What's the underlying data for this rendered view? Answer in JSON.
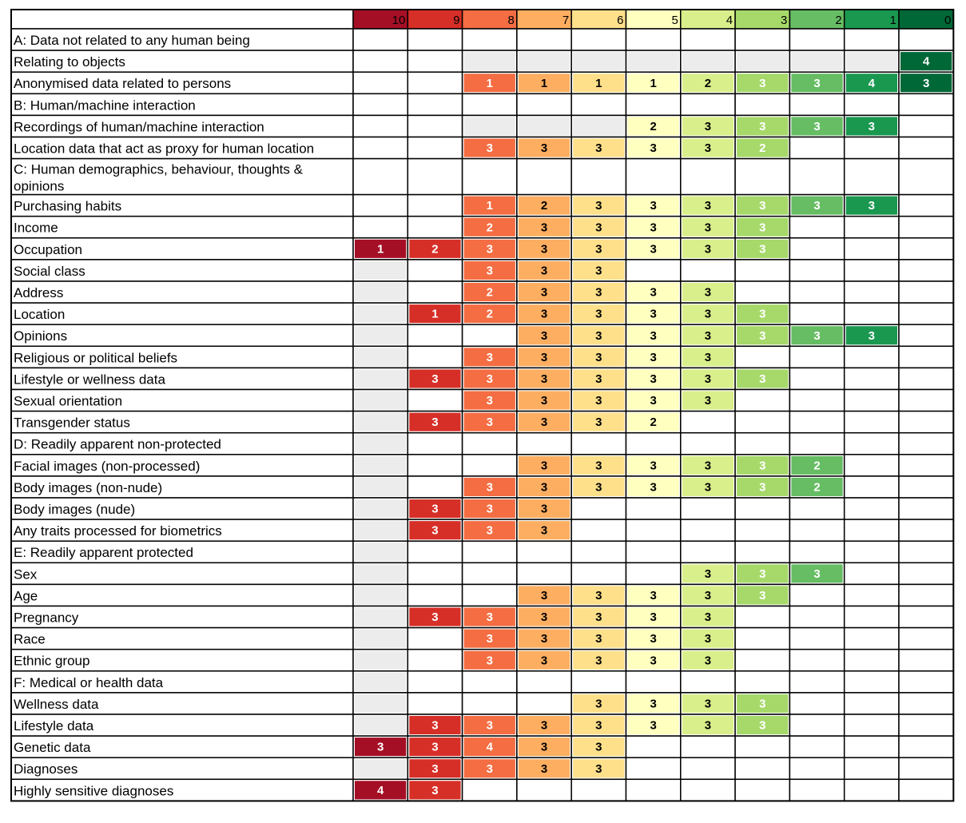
{
  "chart_data": {
    "type": "heatmap",
    "title": "",
    "columns": [
      "10",
      "9",
      "8",
      "7",
      "6",
      "5",
      "4",
      "3",
      "2",
      "1",
      "0"
    ],
    "column_colors": [
      "#a50f25",
      "#d62f27",
      "#f46d43",
      "#fdae61",
      "#fee08b",
      "#ffffbf",
      "#d9ef8b",
      "#a6d96a",
      "#66bd63",
      "#1a9850",
      "#006837"
    ],
    "grey_color": "#ececec",
    "rows": [
      {
        "label": "A: Data not related to any human being",
        "header": true,
        "cells": [
          "",
          "",
          "",
          "",
          "",
          "",
          "",
          "",
          "",
          "",
          ""
        ]
      },
      {
        "label": "Relating to objects",
        "cells": [
          "",
          "",
          "g",
          "g",
          "g",
          "g",
          "g",
          "g",
          "g",
          "g",
          "4"
        ]
      },
      {
        "label": "Anonymised data related to persons",
        "cells": [
          "",
          "",
          "1",
          "1",
          "1",
          "1",
          "2",
          "3",
          "3",
          "4",
          "3"
        ]
      },
      {
        "label": "B: Human/machine interaction",
        "header": true,
        "cells": [
          "",
          "",
          "",
          "",
          "",
          "",
          "",
          "",
          "",
          "",
          ""
        ]
      },
      {
        "label": "Recordings of human/machine interaction",
        "cells": [
          "",
          "",
          "g",
          "g",
          "g",
          "2",
          "3",
          "3",
          "3",
          "3",
          ""
        ]
      },
      {
        "label": "Location data that act as proxy for human location",
        "cells": [
          "",
          "",
          "3",
          "3",
          "3",
          "3",
          "3",
          "2",
          "",
          "",
          ""
        ]
      },
      {
        "label": "C: Human demographics, behaviour, thoughts & opinions",
        "header": true,
        "tall": true,
        "cells": [
          "",
          "",
          "",
          "",
          "",
          "",
          "",
          "",
          "",
          "",
          ""
        ]
      },
      {
        "label": "Purchasing habits",
        "cells": [
          "",
          "",
          "1",
          "2",
          "3",
          "3",
          "3",
          "3",
          "3",
          "3",
          ""
        ]
      },
      {
        "label": "Income",
        "cells": [
          "",
          "",
          "2",
          "3",
          "3",
          "3",
          "3",
          "3",
          "",
          "",
          ""
        ]
      },
      {
        "label": "Occupation",
        "cells": [
          "1",
          "2",
          "3",
          "3",
          "3",
          "3",
          "3",
          "3",
          "",
          "",
          ""
        ]
      },
      {
        "label": "Social class",
        "cells": [
          "g",
          "",
          "3",
          "3",
          "3",
          "",
          "",
          "",
          "",
          "",
          ""
        ]
      },
      {
        "label": "Address",
        "cells": [
          "g",
          "",
          "2",
          "3",
          "3",
          "3",
          "3",
          "",
          "",
          "",
          ""
        ]
      },
      {
        "label": "Location",
        "cells": [
          "g",
          "1",
          "2",
          "3",
          "3",
          "3",
          "3",
          "3",
          "",
          "",
          ""
        ]
      },
      {
        "label": "Opinions",
        "cells": [
          "g",
          "",
          "",
          "3",
          "3",
          "3",
          "3",
          "3",
          "3",
          "3",
          ""
        ]
      },
      {
        "label": "Religious or political beliefs",
        "cells": [
          "g",
          "",
          "3",
          "3",
          "3",
          "3",
          "3",
          "",
          "",
          "",
          ""
        ]
      },
      {
        "label": "Lifestyle or wellness data",
        "cells": [
          "g",
          "3",
          "3",
          "3",
          "3",
          "3",
          "3",
          "3",
          "",
          "",
          ""
        ]
      },
      {
        "label": "Sexual orientation",
        "cells": [
          "g",
          "",
          "3",
          "3",
          "3",
          "3",
          "3",
          "",
          "",
          "",
          ""
        ]
      },
      {
        "label": "Transgender status",
        "cells": [
          "g",
          "3",
          "3",
          "3",
          "3",
          "2",
          "",
          "",
          "",
          "",
          ""
        ]
      },
      {
        "label": "D: Readily apparent non-protected",
        "header": true,
        "cells": [
          "g",
          "",
          "",
          "",
          "",
          "",
          "",
          "",
          "",
          "",
          ""
        ]
      },
      {
        "label": "Facial images (non-processed)",
        "cells": [
          "g",
          "",
          "",
          "3",
          "3",
          "3",
          "3",
          "3",
          "2",
          "",
          ""
        ]
      },
      {
        "label": "Body images (non-nude)",
        "cells": [
          "g",
          "",
          "3",
          "3",
          "3",
          "3",
          "3",
          "3",
          "2",
          "",
          ""
        ]
      },
      {
        "label": "Body images (nude)",
        "cells": [
          "g",
          "3",
          "3",
          "3",
          "",
          "",
          "",
          "",
          "",
          "",
          ""
        ]
      },
      {
        "label": "Any traits processed for biometrics",
        "cells": [
          "g",
          "3",
          "3",
          "3",
          "",
          "",
          "",
          "",
          "",
          "",
          ""
        ]
      },
      {
        "label": "E: Readily apparent protected",
        "header": true,
        "cells": [
          "g",
          "",
          "",
          "",
          "",
          "",
          "",
          "",
          "",
          "",
          ""
        ]
      },
      {
        "label": "Sex",
        "cells": [
          "g",
          "",
          "",
          "",
          "",
          "",
          "3",
          "3",
          "3",
          "",
          ""
        ]
      },
      {
        "label": "Age",
        "cells": [
          "g",
          "",
          "",
          "3",
          "3",
          "3",
          "3",
          "3",
          "",
          "",
          ""
        ]
      },
      {
        "label": "Pregnancy",
        "cells": [
          "g",
          "3",
          "3",
          "3",
          "3",
          "3",
          "3",
          "",
          "",
          "",
          ""
        ]
      },
      {
        "label": "Race",
        "cells": [
          "g",
          "",
          "3",
          "3",
          "3",
          "3",
          "3",
          "",
          "",
          "",
          ""
        ]
      },
      {
        "label": "Ethnic group",
        "cells": [
          "g",
          "",
          "3",
          "3",
          "3",
          "3",
          "3",
          "",
          "",
          "",
          ""
        ]
      },
      {
        "label": "F: Medical or health data",
        "header": true,
        "cells": [
          "g",
          "",
          "",
          "",
          "",
          "",
          "",
          "",
          "",
          "",
          ""
        ]
      },
      {
        "label": "Wellness data",
        "cells": [
          "g",
          "",
          "",
          "",
          "3",
          "3",
          "3",
          "3",
          "",
          "",
          ""
        ]
      },
      {
        "label": "Lifestyle data",
        "cells": [
          "g",
          "3",
          "3",
          "3",
          "3",
          "3",
          "3",
          "3",
          "",
          "",
          ""
        ]
      },
      {
        "label": "Genetic data",
        "cells": [
          "3",
          "3",
          "4",
          "3",
          "3",
          "",
          "",
          "",
          "",
          "",
          ""
        ]
      },
      {
        "label": "Diagnoses",
        "cells": [
          "g",
          "3",
          "3",
          "3",
          "3",
          "",
          "",
          "",
          "",
          "",
          ""
        ]
      },
      {
        "label": "Highly sensitive diagnoses",
        "cells": [
          "4",
          "3",
          "",
          "",
          "",
          "",
          "",
          "",
          "",
          "",
          ""
        ]
      }
    ]
  }
}
